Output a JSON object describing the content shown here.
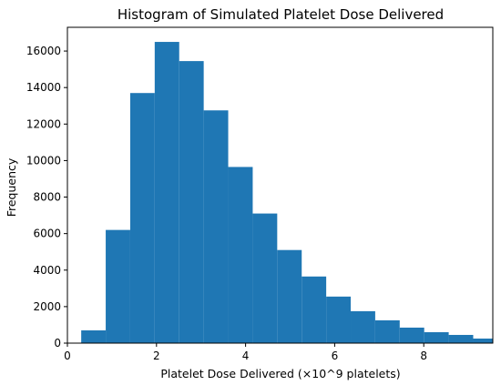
{
  "chart_data": {
    "type": "bar",
    "title": "Histogram of Simulated Platelet Dose Delivered",
    "xlabel": "Platelet Dose Delivered (×10^9 platelets)",
    "ylabel": "Frequency",
    "xlim": [
      0,
      9.55
    ],
    "ylim": [
      0,
      17300
    ],
    "x_ticks": [
      0,
      2,
      4,
      6,
      8
    ],
    "y_ticks": [
      0,
      2000,
      4000,
      6000,
      8000,
      10000,
      12000,
      14000,
      16000
    ],
    "grid": false,
    "bar_color": "#1f77b4",
    "bins": [
      {
        "x0": 0.31,
        "x1": 0.86,
        "value": 700
      },
      {
        "x0": 0.86,
        "x1": 1.41,
        "value": 6200
      },
      {
        "x0": 1.41,
        "x1": 1.96,
        "value": 13700
      },
      {
        "x0": 1.96,
        "x1": 2.51,
        "value": 16500
      },
      {
        "x0": 2.51,
        "x1": 3.06,
        "value": 15450
      },
      {
        "x0": 3.06,
        "x1": 3.61,
        "value": 12750
      },
      {
        "x0": 3.61,
        "x1": 4.16,
        "value": 9650
      },
      {
        "x0": 4.16,
        "x1": 4.71,
        "value": 7100
      },
      {
        "x0": 4.71,
        "x1": 5.26,
        "value": 5100
      },
      {
        "x0": 5.26,
        "x1": 5.81,
        "value": 3650
      },
      {
        "x0": 5.81,
        "x1": 6.36,
        "value": 2550
      },
      {
        "x0": 6.36,
        "x1": 6.91,
        "value": 1750
      },
      {
        "x0": 6.91,
        "x1": 7.46,
        "value": 1250
      },
      {
        "x0": 7.46,
        "x1": 8.01,
        "value": 850
      },
      {
        "x0": 8.01,
        "x1": 8.56,
        "value": 600
      },
      {
        "x0": 8.56,
        "x1": 9.11,
        "value": 450
      },
      {
        "x0": 9.11,
        "x1": 9.55,
        "value": 250
      }
    ]
  }
}
